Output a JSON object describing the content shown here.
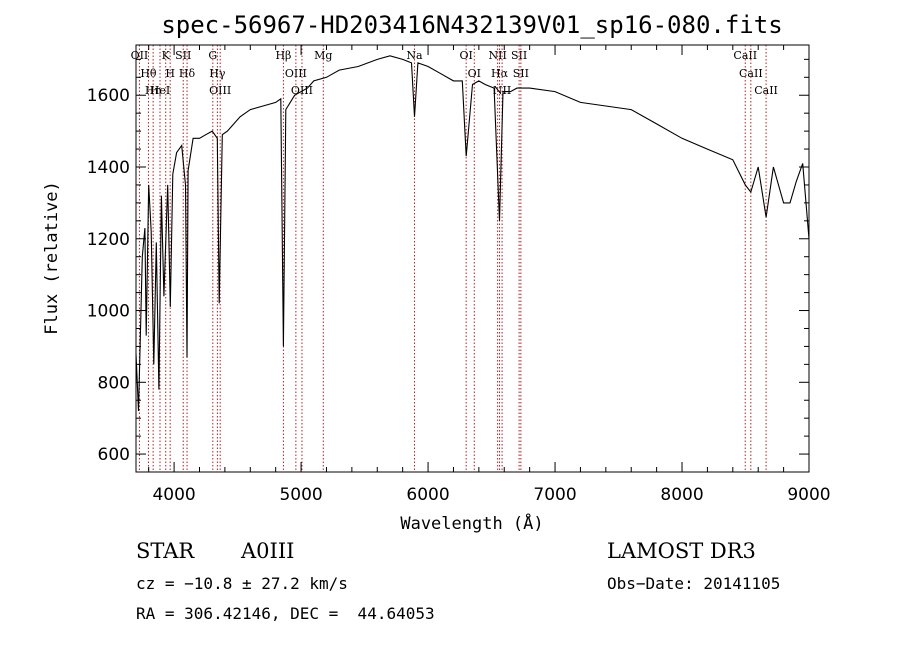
{
  "chart_data": {
    "type": "line",
    "title": "spec-56967-HD203416N432139V01_sp16-080.fits",
    "xlabel": "Wavelength (Å)",
    "ylabel": "Flux (relative)",
    "xlim": [
      3700,
      9000
    ],
    "ylim": [
      550,
      1740
    ],
    "xticks": [
      4000,
      5000,
      6000,
      7000,
      8000,
      9000
    ],
    "yticks": [
      600,
      800,
      1000,
      1200,
      1400,
      1600
    ],
    "x": [
      3700,
      3720,
      3750,
      3770,
      3780,
      3800,
      3820,
      3840,
      3860,
      3880,
      3900,
      3920,
      3950,
      3970,
      3990,
      4020,
      4060,
      4090,
      4102,
      4110,
      4150,
      4200,
      4250,
      4300,
      4340,
      4355,
      4380,
      4420,
      4470,
      4520,
      4600,
      4700,
      4800,
      4840,
      4861,
      4880,
      4950,
      5050,
      5100,
      5200,
      5300,
      5450,
      5600,
      5700,
      5800,
      5870,
      5893,
      5920,
      6000,
      6100,
      6200,
      6270,
      6300,
      6350,
      6400,
      6450,
      6520,
      6563,
      6590,
      6650,
      6700,
      6800,
      7000,
      7200,
      7400,
      7600,
      7800,
      8000,
      8200,
      8400,
      8498,
      8542,
      8600,
      8662,
      8720,
      8800,
      8850,
      8900,
      8950,
      9000
    ],
    "y": [
      880,
      720,
      1150,
      1230,
      930,
      1350,
      1220,
      850,
      1190,
      780,
      1320,
      1040,
      1350,
      1010,
      1380,
      1440,
      1460,
      1350,
      870,
      1390,
      1480,
      1480,
      1490,
      1500,
      1480,
      1020,
      1490,
      1500,
      1520,
      1540,
      1560,
      1570,
      1580,
      1590,
      900,
      1560,
      1600,
      1620,
      1640,
      1650,
      1670,
      1680,
      1700,
      1710,
      1700,
      1690,
      1540,
      1690,
      1680,
      1660,
      1640,
      1640,
      1430,
      1630,
      1640,
      1630,
      1620,
      1250,
      1610,
      1610,
      1620,
      1620,
      1610,
      1580,
      1570,
      1560,
      1520,
      1480,
      1450,
      1420,
      1350,
      1330,
      1400,
      1260,
      1400,
      1300,
      1300,
      1360,
      1410,
      1200
    ],
    "lines": [
      {
        "name": "OII",
        "wave": 3727
      },
      {
        "name": "Hθ",
        "wave": 3798
      },
      {
        "name": "Hη",
        "wave": 3835
      },
      {
        "name": "HeI",
        "wave": 3889
      },
      {
        "name": "K",
        "wave": 3934
      },
      {
        "name": "H",
        "wave": 3969
      },
      {
        "name": "SII",
        "wave": 4072
      },
      {
        "name": "Hδ",
        "wave": 4102
      },
      {
        "name": "G",
        "wave": 4305
      },
      {
        "name": "Hγ",
        "wave": 4341
      },
      {
        "name": "OIII",
        "wave": 4363
      },
      {
        "name": "Hβ",
        "wave": 4861
      },
      {
        "name": "OIII",
        "wave": 4959
      },
      {
        "name": "OIII",
        "wave": 5007
      },
      {
        "name": "Mg",
        "wave": 5175
      },
      {
        "name": "Na",
        "wave": 5893
      },
      {
        "name": "OI",
        "wave": 6300
      },
      {
        "name": "OI",
        "wave": 6364
      },
      {
        "name": "NII",
        "wave": 6548
      },
      {
        "name": "Hα",
        "wave": 6563
      },
      {
        "name": "NII",
        "wave": 6583
      },
      {
        "name": "SII",
        "wave": 6717
      },
      {
        "name": "SII",
        "wave": 6731
      },
      {
        "name": "CaII",
        "wave": 8498
      },
      {
        "name": "CaII",
        "wave": 8542
      },
      {
        "name": "CaII",
        "wave": 8662
      }
    ],
    "line_color": "#b22222",
    "grid": false
  },
  "info": {
    "class_label": "STAR",
    "subclass": "A0III",
    "survey": "LAMOST DR3",
    "cz": "cz = −10.8 ± 27.2 km/s",
    "obs_date": "Obs−Date: 20141105",
    "coords": "RA = 306.42146, DEC =  44.64053"
  }
}
